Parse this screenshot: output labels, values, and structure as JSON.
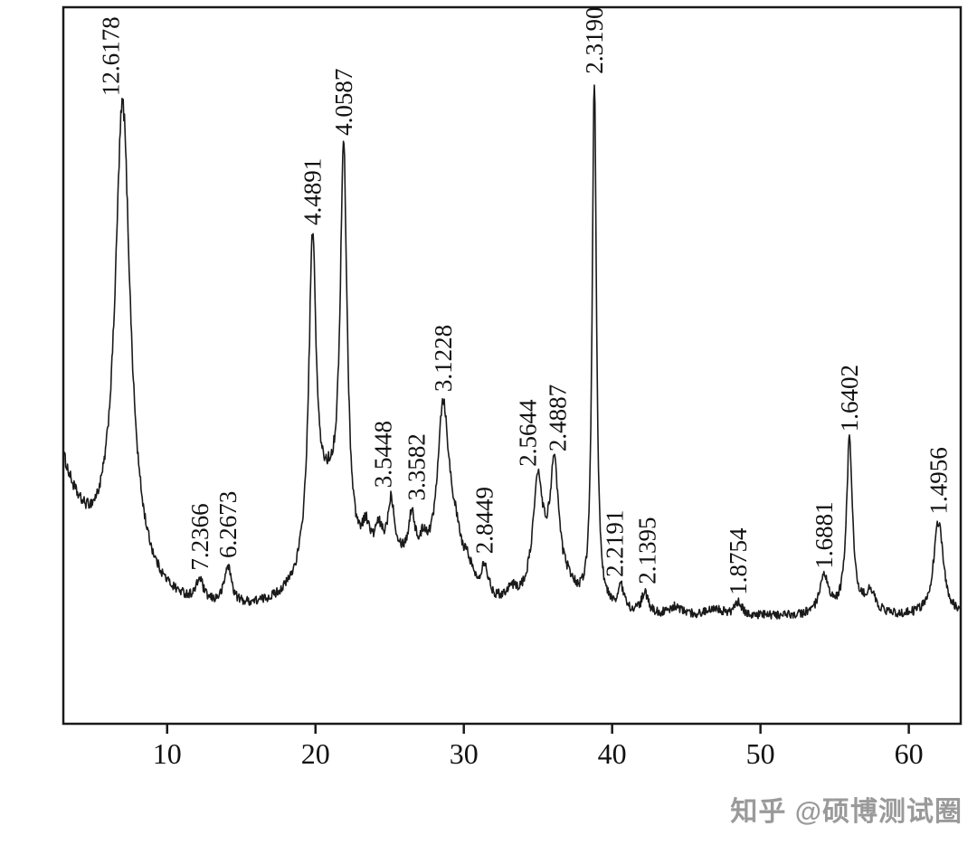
{
  "chart_data": {
    "type": "line",
    "title": "",
    "xlabel": "",
    "ylabel": "",
    "description": "Powder XRD diffractogram; peaks annotated with d-spacing values (angstrom), x-axis is 2-theta (degrees)",
    "x_range": [
      3,
      63.5
    ],
    "x_ticks": [
      "10",
      "20",
      "30",
      "40",
      "50",
      "60"
    ],
    "x_tick_values": [
      10,
      20,
      30,
      40,
      50,
      60
    ],
    "grid": false,
    "legend": "none",
    "line_color": "#1a1a1a",
    "axis_color": "#1a1a1a",
    "background": "#ffffff",
    "baseline": {
      "offset": 1.2,
      "amp": 27,
      "decay": 2.2
    },
    "peaks": [
      {
        "two_theta": 7.0,
        "amp": 82,
        "gamma": 0.6,
        "d_label": "12.6178",
        "label_dx": -4
      },
      {
        "two_theta": 7.0,
        "amp": 8,
        "gamma": 1.8,
        "d_label": ""
      },
      {
        "two_theta": 12.2,
        "amp": 4.0,
        "gamma": 0.28,
        "d_label": "7.2366"
      },
      {
        "two_theta": 14.1,
        "amp": 7.0,
        "gamma": 0.3,
        "d_label": "6.2673"
      },
      {
        "two_theta": 19.8,
        "amp": 57,
        "gamma": 0.3,
        "d_label": "4.4891"
      },
      {
        "two_theta": 20.85,
        "amp": 18,
        "gamma": 1.3,
        "d_label": ""
      },
      {
        "two_theta": 21.9,
        "amp": 72,
        "gamma": 0.28,
        "d_label": "4.0587"
      },
      {
        "two_theta": 23.4,
        "amp": 6,
        "gamma": 0.35,
        "d_label": ""
      },
      {
        "two_theta": 24.25,
        "amp": 5,
        "gamma": 0.3,
        "d_label": ""
      },
      {
        "two_theta": 25.1,
        "amp": 10,
        "gamma": 0.27,
        "d_label": "3.5448",
        "label_dx": 0
      },
      {
        "two_theta": 25.3,
        "amp": 8,
        "gamma": 2.2,
        "d_label": ""
      },
      {
        "two_theta": 26.5,
        "amp": 9,
        "gamma": 0.27,
        "d_label": "3.3582",
        "label_dx": 14
      },
      {
        "two_theta": 27.3,
        "amp": 5,
        "gamma": 0.35,
        "d_label": ""
      },
      {
        "two_theta": 28.6,
        "amp": 33,
        "gamma": 0.5,
        "d_label": "3.1228"
      },
      {
        "two_theta": 29.4,
        "amp": 8,
        "gamma": 0.6,
        "d_label": ""
      },
      {
        "two_theta": 30.3,
        "amp": 4,
        "gamma": 0.4,
        "d_label": ""
      },
      {
        "two_theta": 31.4,
        "amp": 6,
        "gamma": 0.3,
        "d_label": "2.8449"
      },
      {
        "two_theta": 33.2,
        "amp": 2.5,
        "gamma": 0.5,
        "d_label": ""
      },
      {
        "two_theta": 35.0,
        "amp": 22,
        "gamma": 0.45,
        "d_label": "2.5644",
        "label_dx": -2
      },
      {
        "two_theta": 36.1,
        "amp": 24,
        "gamma": 0.4,
        "d_label": "2.4887",
        "label_dx": 13
      },
      {
        "two_theta": 37.1,
        "amp": 3,
        "gamma": 0.6,
        "d_label": ""
      },
      {
        "two_theta": 38.8,
        "amp": 97,
        "gamma": 0.17,
        "d_label": "2.3190"
      },
      {
        "two_theta": 40.6,
        "amp": 4.3,
        "gamma": 0.25,
        "d_label": "2.2191",
        "label_dx": 2
      },
      {
        "two_theta": 42.2,
        "amp": 3.8,
        "gamma": 0.25,
        "d_label": "2.1395",
        "label_dx": 12
      },
      {
        "two_theta": 44.3,
        "amp": 1.5,
        "gamma": 0.4,
        "d_label": ""
      },
      {
        "two_theta": 46.9,
        "amp": 1.5,
        "gamma": 0.5,
        "d_label": ""
      },
      {
        "two_theta": 48.5,
        "amp": 2.3,
        "gamma": 0.3,
        "d_label": "1.8754"
      },
      {
        "two_theta": 54.3,
        "amp": 6.7,
        "gamma": 0.38,
        "d_label": "1.6881"
      },
      {
        "two_theta": 56.0,
        "amp": 32,
        "gamma": 0.25,
        "d_label": "1.6402"
      },
      {
        "two_theta": 57.4,
        "amp": 4,
        "gamma": 0.45,
        "d_label": ""
      },
      {
        "two_theta": 62.0,
        "amp": 17.5,
        "gamma": 0.4,
        "d_label": "1.4956"
      }
    ]
  },
  "watermark": {
    "text": "知乎 @硕博测试圈",
    "color": "#9a9a9a"
  }
}
